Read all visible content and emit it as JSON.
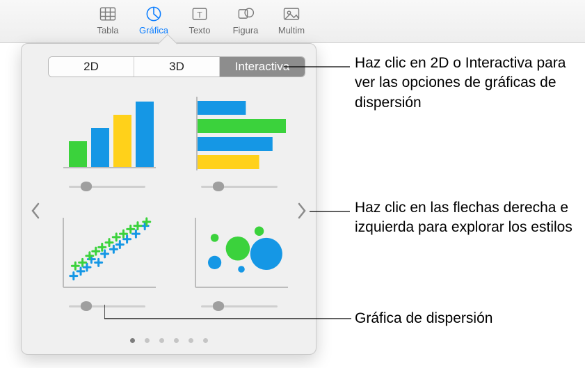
{
  "toolbar": {
    "items": [
      {
        "label": "Tabla"
      },
      {
        "label": "Gráfica"
      },
      {
        "label": "Texto"
      },
      {
        "label": "Figura"
      },
      {
        "label": "Multim"
      }
    ],
    "active_index": 1
  },
  "popover": {
    "segments": [
      "2D",
      "3D",
      "Interactiva"
    ],
    "selected_segment_index": 2,
    "palette": {
      "green": "#3bd23c",
      "blue": "#1597e5",
      "yellow": "#ffd11a",
      "dark": "#222222",
      "axis": "#bcbcbc",
      "track": "#cfcfcf",
      "knob": "#9f9f9f",
      "popbg": "#f0f0f0"
    },
    "charts": [
      {
        "type": "interactive-column",
        "column_count": 4,
        "column_colors": [
          "#3bd23c",
          "#1597e5",
          "#ffd11a",
          "#1597e5"
        ],
        "column_rel_heights": [
          0.4,
          0.6,
          0.8,
          1.0
        ],
        "slider_pos": 0.18
      },
      {
        "type": "interactive-bar",
        "bar_count": 4,
        "bar_colors": [
          "#1597e5",
          "#3bd23c",
          "#1597e5",
          "#ffd11a"
        ],
        "bar_rel_widths": [
          0.55,
          1.0,
          0.85,
          0.7
        ],
        "slider_pos": 0.18
      },
      {
        "type": "interactive-scatter",
        "marker": "plus",
        "series": [
          {
            "color": "#1597e5",
            "points": [
              [
                0.1,
                0.15
              ],
              [
                0.18,
                0.22
              ],
              [
                0.25,
                0.28
              ],
              [
                0.3,
                0.4
              ],
              [
                0.38,
                0.35
              ],
              [
                0.45,
                0.48
              ],
              [
                0.55,
                0.55
              ],
              [
                0.62,
                0.62
              ],
              [
                0.7,
                0.7
              ],
              [
                0.8,
                0.78
              ],
              [
                0.9,
                0.9
              ]
            ]
          },
          {
            "color": "#3bd23c",
            "points": [
              [
                0.12,
                0.3
              ],
              [
                0.2,
                0.35
              ],
              [
                0.28,
                0.45
              ],
              [
                0.35,
                0.52
              ],
              [
                0.42,
                0.58
              ],
              [
                0.5,
                0.65
              ],
              [
                0.58,
                0.73
              ],
              [
                0.66,
                0.78
              ],
              [
                0.74,
                0.85
              ],
              [
                0.82,
                0.9
              ],
              [
                0.92,
                0.96
              ]
            ]
          }
        ],
        "slider_pos": 0.18
      },
      {
        "type": "interactive-bubble",
        "bubbles": [
          {
            "x": 0.2,
            "y": 0.72,
            "r": 0.06,
            "color": "#3bd23c"
          },
          {
            "x": 0.2,
            "y": 0.35,
            "r": 0.1,
            "color": "#1597e5"
          },
          {
            "x": 0.46,
            "y": 0.56,
            "r": 0.18,
            "color": "#3bd23c"
          },
          {
            "x": 0.5,
            "y": 0.25,
            "r": 0.05,
            "color": "#1597e5"
          },
          {
            "x": 0.78,
            "y": 0.48,
            "r": 0.24,
            "color": "#1597e5"
          },
          {
            "x": 0.7,
            "y": 0.82,
            "r": 0.07,
            "color": "#3bd23c"
          }
        ],
        "slider_pos": 0.18
      }
    ],
    "page_count": 6,
    "current_page": 0
  },
  "callouts": {
    "tabs": "Haz clic en 2D o Interactiva para ver las opciones de gráficas de dispersión",
    "arrows": "Haz clic en las flechas derecha e izquierda para explorar los estilos",
    "scatter": "Gráfica de dispersión"
  }
}
